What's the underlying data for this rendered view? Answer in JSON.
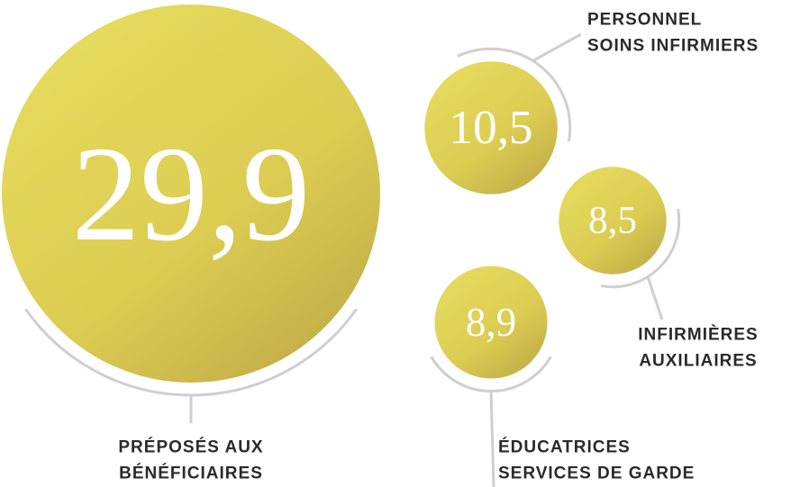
{
  "chart_data": {
    "type": "bubble",
    "categories": [
      [
        "PRÉPOSÉS AUX",
        "BÉNÉFICIAIRES"
      ],
      [
        "PERSONNEL",
        "SOINS INFIRMIERS"
      ],
      [
        "INFIRMIÈRES",
        "AUXILIAIRES"
      ],
      [
        "ÉDUCATRICES",
        "SERVICES DE GARDE"
      ]
    ],
    "values": [
      29.9,
      10.5,
      8.5,
      8.9
    ],
    "value_labels": [
      "29,9",
      "10,5",
      "8,5",
      "8,9"
    ],
    "color": "#dccd52"
  }
}
